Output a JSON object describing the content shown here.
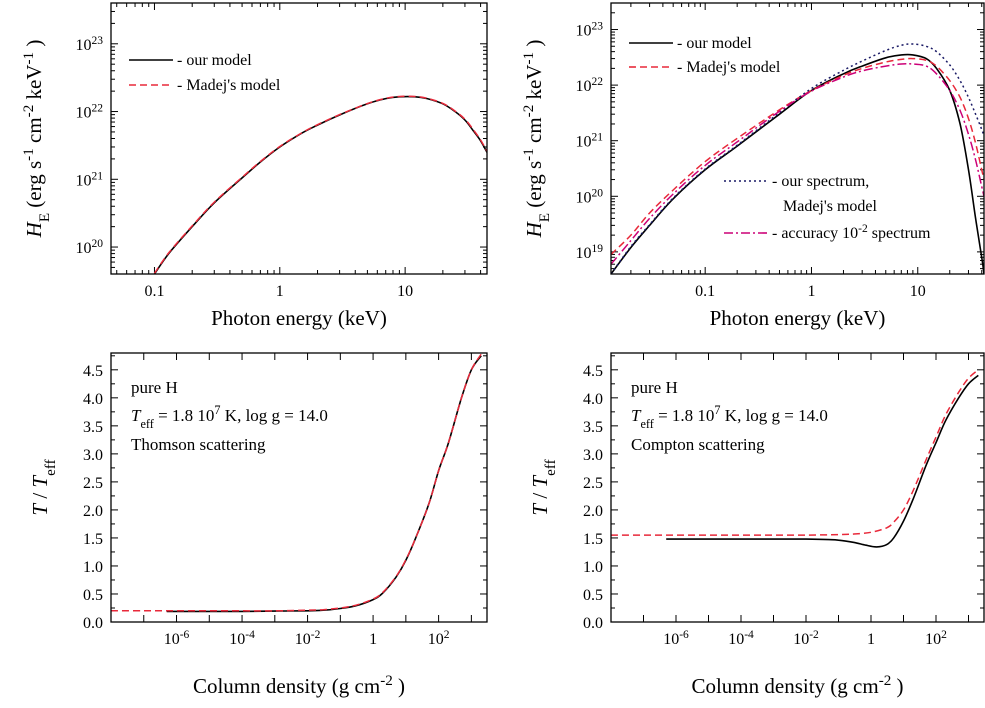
{
  "colors": {
    "black": "#000000",
    "red": "#e8293a",
    "dotted": "#1a1a66",
    "dashdot": "#cc0077"
  },
  "chart_data": [
    {
      "type": "line",
      "xscale": "log",
      "yscale": "log",
      "xlim": [
        0.045,
        45
      ],
      "ylim": [
        4e+19,
        4e+23
      ],
      "xticks": [
        {
          "v": 0.1,
          "label": "0.1"
        },
        {
          "v": 1,
          "label": "1"
        },
        {
          "v": 10,
          "label": "10"
        }
      ],
      "yticks": [
        {
          "v": 1e+20,
          "base": "10",
          "exp": "20"
        },
        {
          "v": 1e+21,
          "base": "10",
          "exp": "21"
        },
        {
          "v": 1e+22,
          "base": "10",
          "exp": "22"
        },
        {
          "v": 1e+23,
          "base": "10",
          "exp": "23"
        }
      ],
      "xlabel": "Photon energy  (keV)",
      "ylabel": {
        "sym": "H",
        "sub": "E",
        "units": "(erg s",
        "e1": "-1",
        "cm": " cm",
        "e2": "-2",
        "kev": " keV",
        "e3": "-1",
        "close": ")"
      },
      "legend": [
        {
          "label": "- our model",
          "style": "solid"
        },
        {
          "label": "- Madej's model",
          "style": "dashed"
        }
      ],
      "series": [
        {
          "name": "- our model",
          "style": "solid",
          "x": [
            0.1,
            0.13,
            0.2,
            0.3,
            0.5,
            0.7,
            1,
            1.5,
            2,
            3,
            5,
            7,
            9,
            12,
            15,
            20,
            25,
            30,
            35,
            40,
            45
          ],
          "y": [
            4e+19,
            8e+19,
            2e+20,
            4.5e+20,
            1.05e+21,
            1.8e+21,
            3e+21,
            4.8e+21,
            6.3e+21,
            8.9e+21,
            1.3e+22,
            1.55e+22,
            1.65e+22,
            1.65e+22,
            1.55e+22,
            1.3e+22,
            1e+22,
            7.5e+21,
            5.2e+21,
            3.7e+21,
            2.5e+21
          ]
        },
        {
          "name": "- Madej's model",
          "style": "dashed",
          "x": [
            0.1,
            0.13,
            0.2,
            0.3,
            0.5,
            0.7,
            1,
            1.5,
            2,
            3,
            5,
            7,
            9,
            12,
            15,
            20,
            25,
            30,
            35,
            40,
            45
          ],
          "y": [
            4.1e+19,
            8.2e+19,
            2.05e+20,
            4.6e+20,
            1.07e+21,
            1.83e+21,
            3.05e+21,
            4.85e+21,
            6.4e+21,
            9e+21,
            1.31e+22,
            1.57e+22,
            1.67e+22,
            1.67e+22,
            1.57e+22,
            1.32e+22,
            1.02e+22,
            7.7e+21,
            5.4e+21,
            3.8e+21,
            2.6e+21
          ]
        }
      ]
    },
    {
      "type": "line",
      "xscale": "log",
      "yscale": "log",
      "xlim": [
        0.013,
        42
      ],
      "ylim": [
        4e+18,
        3e+23
      ],
      "xticks": [
        {
          "v": 0.1,
          "label": "0.1"
        },
        {
          "v": 1,
          "label": "1"
        },
        {
          "v": 10,
          "label": "10"
        }
      ],
      "yticks": [
        {
          "v": 1e+19,
          "base": "10",
          "exp": "19"
        },
        {
          "v": 1e+20,
          "base": "10",
          "exp": "20"
        },
        {
          "v": 1e+21,
          "base": "10",
          "exp": "21"
        },
        {
          "v": 1e+22,
          "base": "10",
          "exp": "22"
        },
        {
          "v": 1e+23,
          "base": "10",
          "exp": "23"
        }
      ],
      "xlabel": "Photon energy  (keV)",
      "ylabel": {
        "sym": "H",
        "sub": "E",
        "units": "(erg s",
        "e1": "-1",
        "cm": " cm",
        "e2": "-2",
        "kev": " keV",
        "e3": "-1",
        "close": ")"
      },
      "legend": [
        {
          "label": "- our model",
          "style": "solid"
        },
        {
          "label": "- Madej's model",
          "style": "dashed"
        },
        {
          "label": "- our spectrum,",
          "label2": "Madej's model",
          "style": "dotted"
        },
        {
          "label": "- accuracy 10",
          "sup": "-2",
          "tail": " spectrum",
          "style": "dashdot"
        }
      ],
      "series": [
        {
          "name": "- our model",
          "style": "solid",
          "x": [
            0.013,
            0.02,
            0.03,
            0.05,
            0.1,
            0.2,
            0.5,
            1,
            2,
            3,
            5,
            7,
            9,
            12,
            15,
            20,
            25,
            30,
            35,
            40,
            42
          ],
          "y": [
            4e+18,
            1.2e+19,
            3e+19,
            9e+19,
            3e+20,
            8e+20,
            3e+21,
            8e+21,
            1.6e+22,
            2.2e+22,
            3.1e+22,
            3.5e+22,
            3.5e+22,
            3e+22,
            2e+22,
            8e+21,
            2e+21,
            3e+20,
            4e+19,
            8e+18,
            4e+18
          ]
        },
        {
          "name": "- Madej's model",
          "style": "dashed",
          "x": [
            0.013,
            0.02,
            0.03,
            0.05,
            0.1,
            0.2,
            0.5,
            1,
            2,
            3,
            5,
            7,
            9,
            12,
            15,
            20,
            25,
            30,
            35,
            40,
            42
          ],
          "y": [
            9e+18,
            2e+19,
            5e+19,
            1.3e+20,
            4.2e+20,
            1.1e+21,
            3.6e+21,
            8e+21,
            1.5e+22,
            2e+22,
            2.6e+22,
            2.9e+22,
            3e+22,
            2.8e+22,
            2.2e+22,
            1.2e+22,
            6e+21,
            2.5e+21,
            9e+20,
            3e+20,
            2e+20
          ]
        },
        {
          "name": "- our spectrum,",
          "style": "dotted",
          "x": [
            0.013,
            0.02,
            0.03,
            0.05,
            0.1,
            0.2,
            0.5,
            1,
            2,
            3,
            5,
            7,
            9,
            12,
            15,
            20,
            25,
            30,
            35,
            40,
            42
          ],
          "y": [
            4e+18,
            1.25e+19,
            3.1e+19,
            9.3e+19,
            3.1e+20,
            8.3e+20,
            3.2e+21,
            8.7e+21,
            1.85e+22,
            2.7e+22,
            4.2e+22,
            5.2e+22,
            5.5e+22,
            5e+22,
            4e+22,
            2.3e+22,
            1.2e+22,
            6e+21,
            3e+21,
            1.6e+21,
            1.2e+21
          ]
        },
        {
          "name": "- accuracy 10-2 spectrum",
          "style": "dashdot",
          "x": [
            0.013,
            0.02,
            0.03,
            0.05,
            0.1,
            0.2,
            0.5,
            1,
            2,
            3,
            5,
            7,
            9,
            12,
            15,
            20,
            25,
            30,
            35,
            40,
            42
          ],
          "y": [
            6e+18,
            1.6e+19,
            4e+19,
            1.1e+20,
            3.6e+20,
            9.5e+20,
            3.4e+21,
            7.8e+21,
            1.4e+22,
            1.8e+22,
            2.2e+22,
            2.4e+22,
            2.4e+22,
            2.2e+22,
            1.6e+22,
            8e+21,
            3.5e+21,
            1.3e+21,
            4.5e+20,
            1.5e+20,
            1e+20
          ]
        }
      ]
    },
    {
      "type": "line",
      "xscale": "log",
      "yscale": "linear",
      "xlim": [
        1e-08,
        3000
      ],
      "ylim": [
        0,
        4.8
      ],
      "xticks": [
        {
          "v": 1e-06,
          "base": "10",
          "exp": "-6"
        },
        {
          "v": 0.0001,
          "base": "10",
          "exp": "-4"
        },
        {
          "v": 0.01,
          "base": "10",
          "exp": "-2"
        },
        {
          "v": 1,
          "label": "1"
        },
        {
          "v": 100,
          "base": "10",
          "exp": "2"
        }
      ],
      "yticks": [
        {
          "v": 0,
          "label": "0.0"
        },
        {
          "v": 0.5,
          "label": "0.5"
        },
        {
          "v": 1,
          "label": "1.0"
        },
        {
          "v": 1.5,
          "label": "1.5"
        },
        {
          "v": 2,
          "label": "2.0"
        },
        {
          "v": 2.5,
          "label": "2.5"
        },
        {
          "v": 3,
          "label": "3.0"
        },
        {
          "v": 3.5,
          "label": "3.5"
        },
        {
          "v": 4,
          "label": "4.0"
        },
        {
          "v": 4.5,
          "label": "4.5"
        }
      ],
      "xlabel": {
        "text": "Column density  (g cm",
        "exp": "-2",
        "close": " )"
      },
      "ylabel": {
        "t": "T / T",
        "sub": "eff"
      },
      "annotations": {
        "line1": "pure H",
        "teff": "T",
        "teff_sub": "eff",
        "teff_val": " = 1.8 10",
        "teff_exp": "7",
        "teff_unit": " K,    log g = 14.0",
        "line3": "Thomson scattering"
      },
      "series": [
        {
          "name": "our model",
          "style": "solid",
          "x": [
            5e-07,
            1e-06,
            1e-05,
            0.0001,
            0.001,
            0.01,
            0.03,
            0.1,
            0.3,
            1,
            2,
            5,
            10,
            20,
            50,
            100,
            200,
            500,
            1000,
            2000
          ],
          "y": [
            0.19,
            0.19,
            0.19,
            0.19,
            0.195,
            0.2,
            0.21,
            0.24,
            0.29,
            0.4,
            0.52,
            0.8,
            1.1,
            1.5,
            2.1,
            2.7,
            3.2,
            4.0,
            4.5,
            4.75
          ]
        },
        {
          "name": "Madej's model",
          "style": "dashed",
          "x": [
            1e-08,
            1e-07,
            1e-06,
            1e-05,
            0.0001,
            0.001,
            0.01,
            0.03,
            0.1,
            0.3,
            1,
            2,
            5,
            10,
            20,
            50,
            100,
            200,
            500,
            1000,
            2000
          ],
          "y": [
            0.2,
            0.2,
            0.2,
            0.2,
            0.2,
            0.2,
            0.21,
            0.22,
            0.25,
            0.3,
            0.41,
            0.53,
            0.81,
            1.11,
            1.5,
            2.1,
            2.7,
            3.2,
            4.0,
            4.5,
            4.78
          ]
        }
      ]
    },
    {
      "type": "line",
      "xscale": "log",
      "yscale": "linear",
      "xlim": [
        1e-08,
        3000
      ],
      "ylim": [
        0,
        4.8
      ],
      "xticks": [
        {
          "v": 1e-06,
          "base": "10",
          "exp": "-6"
        },
        {
          "v": 0.0001,
          "base": "10",
          "exp": "-4"
        },
        {
          "v": 0.01,
          "base": "10",
          "exp": "-2"
        },
        {
          "v": 1,
          "label": "1"
        },
        {
          "v": 100,
          "base": "10",
          "exp": "2"
        }
      ],
      "yticks": [
        {
          "v": 0,
          "label": "0.0"
        },
        {
          "v": 0.5,
          "label": "0.5"
        },
        {
          "v": 1,
          "label": "1.0"
        },
        {
          "v": 1.5,
          "label": "1.5"
        },
        {
          "v": 2,
          "label": "2.0"
        },
        {
          "v": 2.5,
          "label": "2.5"
        },
        {
          "v": 3,
          "label": "3.0"
        },
        {
          "v": 3.5,
          "label": "3.5"
        },
        {
          "v": 4,
          "label": "4.0"
        },
        {
          "v": 4.5,
          "label": "4.5"
        }
      ],
      "xlabel": {
        "text": "Column density  (g cm",
        "exp": "-2",
        "close": " )"
      },
      "ylabel": {
        "t": "T / T",
        "sub": "eff"
      },
      "annotations": {
        "line1": "pure H",
        "teff": "T",
        "teff_sub": "eff",
        "teff_val": " = 1.8 10",
        "teff_exp": "7",
        "teff_unit": " K,    log g = 14.0",
        "line3": "Compton scattering"
      },
      "series": [
        {
          "name": "our model",
          "style": "solid",
          "x": [
            5e-07,
            1e-06,
            1e-05,
            0.0001,
            0.001,
            0.01,
            0.05,
            0.1,
            0.3,
            0.7,
            1.5,
            3,
            5,
            10,
            20,
            50,
            100,
            200,
            500,
            1000,
            2000
          ],
          "y": [
            1.48,
            1.48,
            1.48,
            1.48,
            1.48,
            1.48,
            1.47,
            1.46,
            1.42,
            1.37,
            1.34,
            1.38,
            1.5,
            1.8,
            2.2,
            2.8,
            3.2,
            3.6,
            4.0,
            4.25,
            4.4
          ]
        },
        {
          "name": "Madej's model",
          "style": "dashed",
          "x": [
            1e-08,
            1e-07,
            1e-06,
            1e-05,
            0.0001,
            0.001,
            0.01,
            0.1,
            0.3,
            1,
            3,
            5,
            10,
            20,
            50,
            100,
            200,
            500,
            1000,
            2000
          ],
          "y": [
            1.55,
            1.55,
            1.55,
            1.55,
            1.55,
            1.55,
            1.55,
            1.56,
            1.57,
            1.6,
            1.68,
            1.78,
            2.0,
            2.35,
            2.9,
            3.3,
            3.7,
            4.1,
            4.35,
            4.5
          ]
        }
      ]
    }
  ]
}
